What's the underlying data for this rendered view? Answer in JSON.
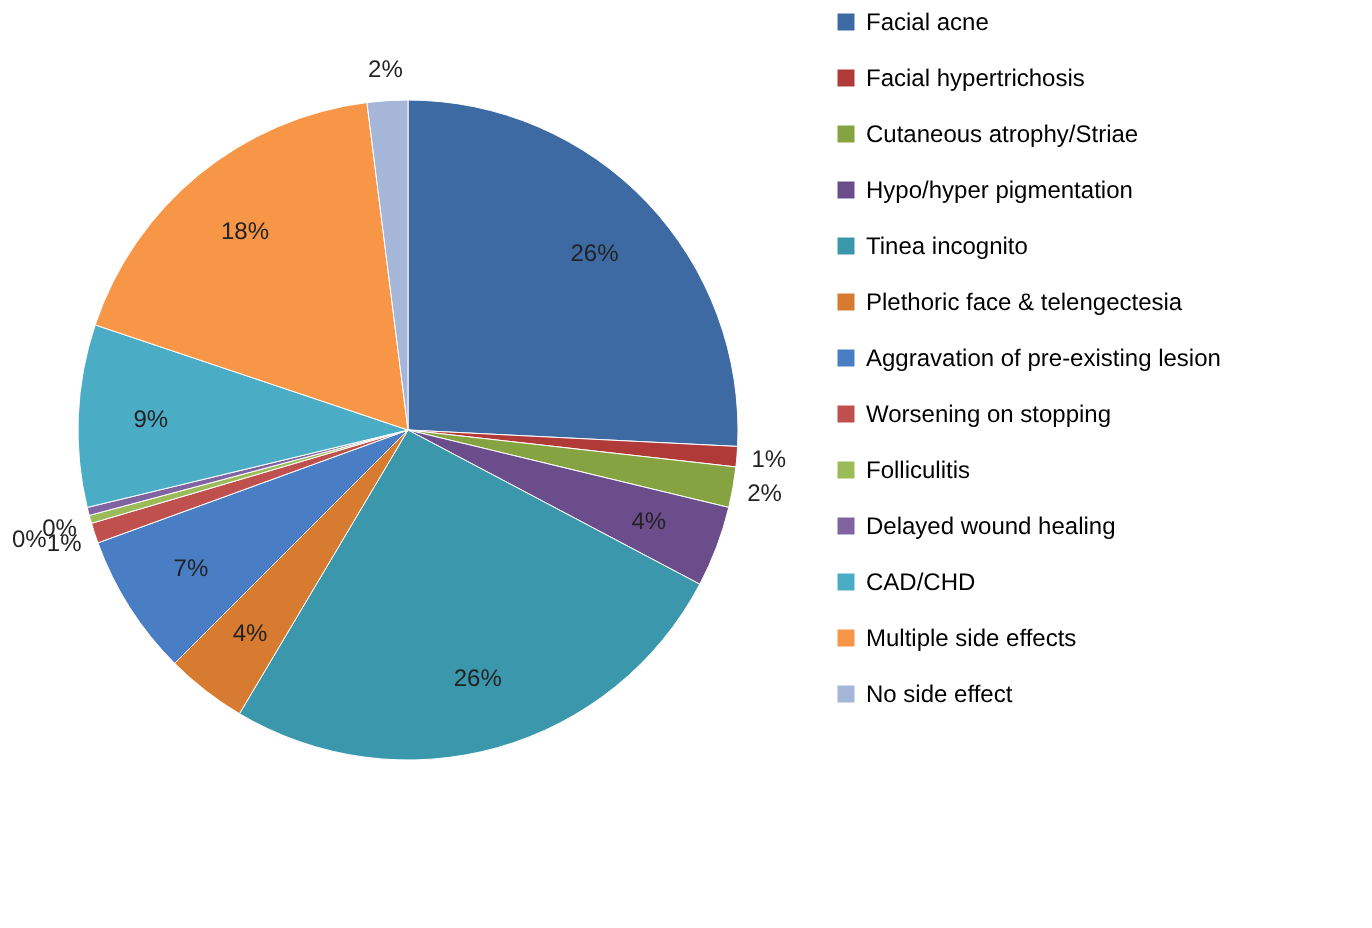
{
  "chart_data": {
    "type": "pie",
    "categories": [
      "Facial acne",
      "Facial hypertrichosis",
      "Cutaneous  atrophy/Striae",
      "Hypo/hyper pigmentation",
      "Tinea incognito",
      "Plethoric  face & telengectesia",
      "Aggravation  of pre-existing lesion",
      "Worsening on stopping",
      "Folliculitis",
      "Delayed wound healing",
      "CAD/CHD",
      "Multiple side effects",
      "No side effect"
    ],
    "values": [
      26,
      1,
      2,
      4,
      26,
      4,
      7,
      1,
      0.4,
      0.4,
      9,
      18,
      2
    ],
    "value_labels": [
      "26%",
      "1%",
      "2%",
      "4%",
      "26%",
      "4%",
      "7%",
      "1%",
      "0%",
      "0%",
      "9%",
      "18%",
      "2%"
    ],
    "colors": [
      "#3e6aa3",
      "#b03a38",
      "#86a342",
      "#6c4d8c",
      "#3b97ac",
      "#d77b30",
      "#4a7ec4",
      "#c0504d",
      "#9bbb59",
      "#8064a2",
      "#4bacc6",
      "#f79646",
      "#a5b6d9"
    ],
    "legend": "right"
  }
}
